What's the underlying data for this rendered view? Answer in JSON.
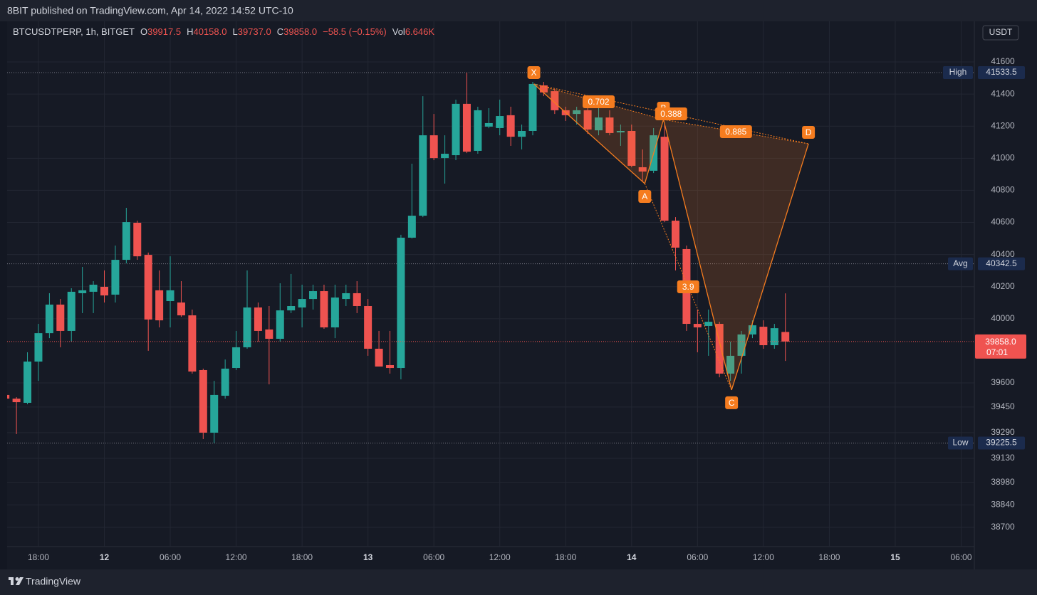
{
  "header": {
    "published": "8BIT published on TradingView.com, Apr 14, 2022 14:52 UTC-10",
    "brand": "TradingView"
  },
  "chart_data": {
    "type": "candlestick",
    "symbol": "BTCUSDTPERP, 1h, BITGET",
    "legend_values": [
      {
        "label": "O",
        "value": "39917.5"
      },
      {
        "label": "H",
        "value": "40158.0"
      },
      {
        "label": "L",
        "value": "39737.0"
      },
      {
        "label": "C",
        "value": "39858.0"
      }
    ],
    "change": "−58.5 (−0.15%)",
    "volume_label": "Vol",
    "volume": "6.646K",
    "currency": "USDT",
    "up_color": "#26a69a",
    "down_color": "#ef5350",
    "open": [
      39525,
      39502,
      39476,
      39733,
      39910,
      40088,
      39924,
      40159,
      40168,
      40199,
      40150,
      40367,
      40598,
      40398,
      40177,
      40110,
      40101,
      40021,
      39680,
      39290,
      39520,
      39693,
      39822,
      40070,
      39933,
      39875,
      40052,
      40070,
      40123,
      40172,
      39946,
      40123,
      40159,
      40079,
      39813,
      39711,
      39693,
      40505,
      40642,
      41143,
      41001,
      41019,
      41339,
      41046,
      41197,
      41188,
      41268,
      41134,
      41170,
      41454,
      41418,
      41299,
      41276,
      41299,
      41174,
      41254,
      41161,
      41170,
      40944,
      40922,
      41134,
      40611,
      40434,
      39968,
      39955,
      39968,
      39658,
      39769,
      39902,
      39950,
      39835,
      39917.5
    ],
    "high": [
      39547,
      39511,
      39791,
      39968,
      40159,
      40123,
      40190,
      40323,
      40234,
      40301,
      40456,
      40691,
      40611,
      40412,
      40301,
      40389,
      40234,
      40057,
      39689,
      39613,
      39746,
      39924,
      40301,
      40101,
      40079,
      40221,
      40279,
      40212,
      40212,
      40212,
      40212,
      40212,
      40234,
      40123,
      39924,
      39924,
      40523,
      40966,
      41387,
      41276,
      41143,
      41365,
      41533.5,
      41321,
      41312,
      41365,
      41321,
      41210,
      41476,
      41476,
      41432,
      41321,
      41321,
      41343,
      41343,
      41299,
      41210,
      41210,
      41055,
      41188,
      41210,
      40633,
      40456,
      40057,
      40057,
      39981,
      39857,
      39924,
      39990,
      39990,
      39968,
      40158
    ],
    "low": [
      39494,
      39281,
      39467,
      39613,
      39879,
      39822,
      39857,
      40035,
      40035,
      40101,
      40101,
      40345,
      40367,
      39800,
      39946,
      39946,
      40012,
      39658,
      39250,
      39225.5,
      39502,
      39680,
      39813,
      39857,
      39591,
      39857,
      40035,
      39946,
      40057,
      39937,
      39879,
      40079,
      40035,
      39769,
      39702,
      39658,
      39622,
      40500,
      40633,
      40988,
      40842,
      40988,
      41032,
      41028,
      41187,
      41143,
      41077,
      41055,
      41143,
      41387,
      41276,
      41232,
      41210,
      41152,
      41143,
      41143,
      41077,
      40944,
      40855,
      40908,
      40602,
      40301,
      39924,
      39791,
      39769,
      39635,
      39613,
      39658,
      39879,
      39813,
      39813,
      39737
    ],
    "close": [
      39502,
      39480,
      39733,
      39910,
      40088,
      39924,
      40168,
      40177,
      40212,
      40145,
      40367,
      40602,
      40389,
      39995,
      39990,
      40177,
      40021,
      39671,
      39290,
      39525,
      39689,
      39822,
      40070,
      39924,
      39875,
      40052,
      40079,
      40123,
      40172,
      39946,
      40132,
      40159,
      40079,
      39813,
      39702,
      39693,
      40505,
      40642,
      41143,
      41001,
      41028,
      41339,
      41041,
      41299,
      41219,
      41263,
      41134,
      41170,
      41463,
      41410,
      41299,
      41268,
      41299,
      41179,
      41254,
      41157,
      41170,
      40953,
      40917,
      41143,
      40611,
      40443,
      39968,
      39946,
      39981,
      39658,
      39769,
      39902,
      39959,
      39835,
      39941,
      39858
    ],
    "xlim": [
      0.15,
      88.2
    ],
    "xticks": [
      {
        "value": 3,
        "label": "18:00"
      },
      {
        "value": 9,
        "label": "12"
      },
      {
        "value": 15,
        "label": "06:00"
      },
      {
        "value": 21,
        "label": "12:00"
      },
      {
        "value": 27,
        "label": "18:00"
      },
      {
        "value": 33,
        "label": "13"
      },
      {
        "value": 39,
        "label": "06:00"
      },
      {
        "value": 45,
        "label": "12:00"
      },
      {
        "value": 51,
        "label": "18:00"
      },
      {
        "value": 57,
        "label": "14"
      },
      {
        "value": 63,
        "label": "06:00"
      },
      {
        "value": 69,
        "label": "12:00"
      },
      {
        "value": 75,
        "label": "18:00"
      },
      {
        "value": 81,
        "label": "15"
      },
      {
        "value": 87,
        "label": "06:00"
      }
    ],
    "ylim": [
      38580,
      41853
    ],
    "yticks": [
      41600,
      41400,
      41200,
      41000,
      40800,
      40600,
      40400,
      40200,
      40000,
      39600,
      39450,
      39290,
      39130,
      38980,
      38840,
      38700
    ],
    "grid": true,
    "price_lines": [
      {
        "name": "High",
        "value": 41533.5
      },
      {
        "name": "Avg",
        "value": 40342.5
      },
      {
        "name": "Low",
        "value": 39225.5
      }
    ],
    "last_price": {
      "value": 39858,
      "label": "39858.0",
      "timer": "07:01"
    },
    "pattern": {
      "color": "#f57c1f",
      "points": [
        {
          "label": "X",
          "x": 48.1,
          "y": 41463
        },
        {
          "label": "A",
          "x": 58.2,
          "y": 40842
        },
        {
          "label": "B",
          "x": 59.9,
          "y": 41241
        },
        {
          "label": "C",
          "x": 66.1,
          "y": 39556
        },
        {
          "label": "D",
          "x": 73.1,
          "y": 41090
        }
      ],
      "ratios": [
        0.702,
        0.388,
        0.885,
        3.9
      ]
    }
  }
}
